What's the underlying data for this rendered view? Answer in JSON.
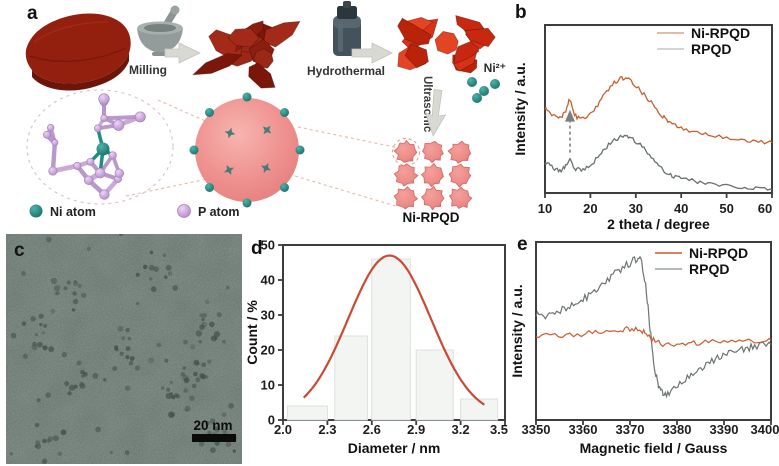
{
  "figure": {
    "panel_labels": {
      "a": "a",
      "b": "b",
      "c": "c",
      "d": "d",
      "e": "e"
    }
  },
  "panel_a": {
    "milling_label": "Milling",
    "hydrothermal_label": "Hydrothermal",
    "ultrasonic_label": "Ultrasonic",
    "ni_ion_label": "Ni²⁺",
    "product_label": "Ni-RPQD",
    "legend": [
      {
        "name": "Ni atom",
        "color": "#1f8d84"
      },
      {
        "name": "P atom",
        "color": "#c9a0d8"
      }
    ],
    "bulk_color": "#93200f",
    "milled_flake_color": "#8c1e10",
    "hydrothermal_flake_color": "#d93018",
    "qd_color": "#ef8f8c"
  },
  "panel_c": {
    "scale_bar": "20 nm"
  },
  "chart_data": [
    {
      "id": "xrd",
      "type": "line",
      "title": "",
      "xlabel": "2 theta / degree",
      "ylabel": "Intensity / a.u.",
      "xlim": [
        10,
        60
      ],
      "xticks": [
        "10",
        "20",
        "30",
        "40",
        "50",
        "60"
      ],
      "grid": false,
      "legend_position": "top-right",
      "legend": [
        "Ni-RPQD",
        "RPQD"
      ],
      "annotation": {
        "type": "dashed-up-arrow",
        "x": 15.5,
        "note": "peak highlighted at ~15.5 degrees"
      },
      "series": [
        {
          "name": "Ni-RPQD",
          "color": "#c7602e",
          "legend_color": "#dfa77f",
          "x": [
            10,
            11.5,
            13,
            14.3,
            15.5,
            16.5,
            18,
            20,
            22,
            24,
            26,
            27.5,
            29,
            31,
            33,
            35,
            36.5,
            38,
            40,
            43,
            46,
            50,
            54,
            57,
            60
          ],
          "y": [
            0.5,
            0.465,
            0.45,
            0.475,
            0.555,
            0.47,
            0.445,
            0.47,
            0.54,
            0.62,
            0.67,
            0.685,
            0.665,
            0.61,
            0.55,
            0.485,
            0.445,
            0.415,
            0.39,
            0.365,
            0.35,
            0.33,
            0.315,
            0.305,
            0.3
          ]
        },
        {
          "name": "RPQD",
          "color": "#68716d",
          "legend_color": "#c3c9c4",
          "x": [
            10,
            11.5,
            13,
            14.3,
            15.5,
            16.5,
            18,
            20,
            22,
            24,
            26,
            27.5,
            29,
            31,
            33,
            35,
            36.5,
            38,
            40,
            43,
            46,
            50,
            54,
            57,
            60
          ],
          "y": [
            0.185,
            0.155,
            0.135,
            0.15,
            0.2,
            0.15,
            0.14,
            0.165,
            0.225,
            0.285,
            0.325,
            0.34,
            0.325,
            0.285,
            0.225,
            0.165,
            0.13,
            0.105,
            0.09,
            0.07,
            0.058,
            0.046,
            0.036,
            0.03,
            0.022
          ]
        }
      ]
    },
    {
      "id": "size_distribution",
      "type": "bar",
      "title": "",
      "xlabel": "Diameter / nm",
      "ylabel": "Count / %",
      "xlim": [
        2.0,
        3.5
      ],
      "ylim": [
        0,
        50
      ],
      "xticks": [
        "2.0",
        "2.3",
        "2.6",
        "2.9",
        "3.2",
        "3.5"
      ],
      "yticks": [
        "0",
        "10",
        "20",
        "30",
        "40",
        "50"
      ],
      "grid": false,
      "bars": [
        {
          "from": 2.03,
          "to": 2.3,
          "count": 4
        },
        {
          "from": 2.35,
          "to": 2.57,
          "count": 24
        },
        {
          "from": 2.6,
          "to": 2.86,
          "count": 46
        },
        {
          "from": 2.9,
          "to": 3.15,
          "count": 20
        },
        {
          "from": 3.2,
          "to": 3.45,
          "count": 6
        }
      ],
      "bar_fill": "#f3f5f3",
      "bar_stroke": "#dbe1dc",
      "fit": {
        "shape": "gaussian",
        "center": 2.72,
        "sigma": 0.28,
        "amplitude": 46,
        "base": 1,
        "range": [
          2.14,
          3.36
        ],
        "color": "#c94b35"
      }
    },
    {
      "id": "epr",
      "type": "line",
      "title": "",
      "xlabel": "Magnetic field / Gauss",
      "ylabel": "Intensity / a.u.",
      "xlim": [
        3350,
        3400
      ],
      "xticks": [
        "3350",
        "3360",
        "3370",
        "3380",
        "3390",
        "3400"
      ],
      "grid": false,
      "legend_position": "top-right",
      "legend": [
        "Ni-RPQD",
        "RPQD"
      ],
      "series": [
        {
          "name": "RPQD",
          "color": "#6b746f",
          "legend_color": "#9aa39e",
          "x": [
            3350,
            3352,
            3354,
            3356,
            3358,
            3360,
            3362,
            3364,
            3366,
            3368,
            3370,
            3371.5,
            3372.5,
            3373.5,
            3374.3,
            3375,
            3375.8,
            3376.5,
            3377.5,
            3379,
            3381,
            3383,
            3385,
            3387,
            3389,
            3391,
            3393,
            3395,
            3397,
            3400
          ],
          "y": [
            0.3,
            0.27,
            0.33,
            0.38,
            0.45,
            0.52,
            0.6,
            0.7,
            0.82,
            0.92,
            1.0,
            1.06,
            1.0,
            0.6,
            0.1,
            -0.3,
            -0.58,
            -0.7,
            -0.76,
            -0.7,
            -0.6,
            -0.5,
            -0.42,
            -0.34,
            -0.27,
            -0.22,
            -0.18,
            -0.15,
            -0.12,
            -0.1
          ]
        },
        {
          "name": "Ni-RPQD",
          "color": "#cc5b2e",
          "legend_color": "#cc5b2e",
          "x": [
            3350,
            3354,
            3358,
            3362,
            3365,
            3368,
            3370,
            3372,
            3373.5,
            3375,
            3377,
            3380,
            3383,
            3386,
            3390,
            3394,
            3397,
            3400
          ],
          "y": [
            0.02,
            0.02,
            0.03,
            0.06,
            0.08,
            0.1,
            0.11,
            0.1,
            0.04,
            -0.04,
            -0.09,
            -0.1,
            -0.08,
            -0.07,
            -0.06,
            -0.05,
            -0.04,
            -0.04
          ]
        }
      ]
    }
  ]
}
